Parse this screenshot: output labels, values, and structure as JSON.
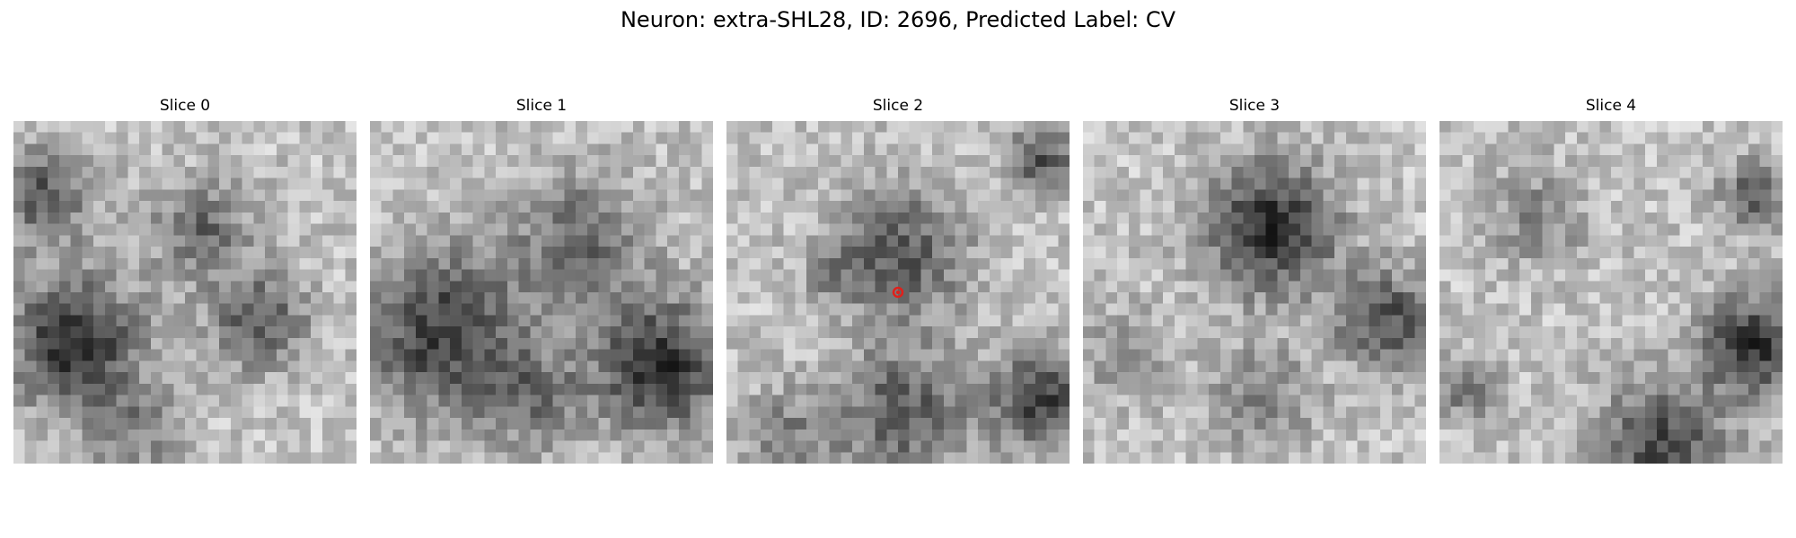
{
  "figure": {
    "title": "Neuron: extra-SHL28, ID: 2696, Predicted Label: CV"
  },
  "panels": [
    {
      "title": "Slice 0"
    },
    {
      "title": "Slice 1"
    },
    {
      "title": "Slice 2"
    },
    {
      "title": "Slice 3"
    },
    {
      "title": "Slice 4"
    }
  ],
  "image": {
    "grid_size": 30,
    "colormap": "grayscale",
    "marker_slice": 2,
    "marker_color": "#e0201b"
  }
}
